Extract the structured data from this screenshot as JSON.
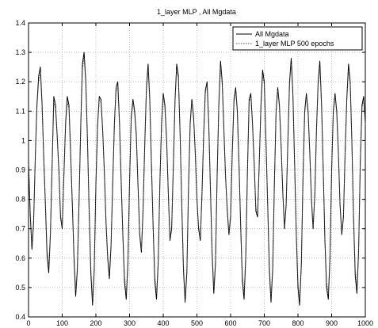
{
  "chart_data": {
    "type": "line",
    "title": "1_layer MLP , All Mgdata",
    "xlabel": "",
    "ylabel": "",
    "xlim": [
      0,
      1000
    ],
    "ylim": [
      0.4,
      1.4
    ],
    "xticks": [
      0,
      100,
      200,
      300,
      400,
      500,
      600,
      700,
      800,
      900,
      1000
    ],
    "yticks": [
      0.4,
      0.5,
      0.6,
      0.7,
      0.8,
      0.9,
      1,
      1.1,
      1.2,
      1.3,
      1.4
    ],
    "xtick_labels": [
      "0",
      "100",
      "200",
      "300",
      "400",
      "500",
      "600",
      "700",
      "800",
      "900",
      "1000"
    ],
    "ytick_labels": [
      "0.4",
      "0.5",
      "0.6",
      "0.7",
      "0.8",
      "0.9",
      "1",
      "1.1",
      "1.2",
      "1.3",
      "1.4"
    ],
    "grid": true,
    "legend_position": "top-right",
    "colors": {
      "series1": "#000000",
      "series2": "#555555",
      "grid": "#9a9a9a"
    },
    "series": [
      {
        "name": "All Mgdata",
        "style": "solid",
        "x": [
          0,
          5,
          10,
          15,
          20,
          25,
          30,
          35,
          40,
          45,
          50,
          55,
          60,
          65,
          70,
          75,
          80,
          85,
          90,
          95,
          100,
          105,
          110,
          115,
          120,
          125,
          130,
          135,
          140,
          145,
          150,
          155,
          160,
          165,
          170,
          175,
          180,
          185,
          190,
          195,
          200,
          205,
          210,
          215,
          220,
          225,
          230,
          235,
          240,
          245,
          250,
          255,
          260,
          265,
          270,
          275,
          280,
          285,
          290,
          295,
          300,
          305,
          310,
          315,
          320,
          325,
          330,
          335,
          340,
          345,
          350,
          355,
          360,
          365,
          370,
          375,
          380,
          385,
          390,
          395,
          400,
          405,
          410,
          415,
          420,
          425,
          430,
          435,
          440,
          445,
          450,
          455,
          460,
          465,
          470,
          475,
          480,
          485,
          490,
          495,
          500,
          505,
          510,
          515,
          520,
          525,
          530,
          535,
          540,
          545,
          550,
          555,
          560,
          565,
          570,
          575,
          580,
          585,
          590,
          595,
          600,
          605,
          610,
          615,
          620,
          625,
          630,
          635,
          640,
          645,
          650,
          655,
          660,
          665,
          670,
          675,
          680,
          685,
          690,
          695,
          700,
          705,
          710,
          715,
          720,
          725,
          730,
          735,
          740,
          745,
          750,
          755,
          760,
          765,
          770,
          775,
          780,
          785,
          790,
          795,
          800,
          805,
          810,
          815,
          820,
          825,
          830,
          835,
          840,
          845,
          850,
          855,
          860,
          865,
          870,
          875,
          880,
          885,
          890,
          895,
          900,
          905,
          910,
          915,
          920,
          925,
          930,
          935,
          940,
          945,
          950,
          955,
          960,
          965,
          970,
          975,
          980,
          985,
          990,
          995,
          1000
        ],
        "y": [
          0.93,
          0.75,
          0.63,
          0.72,
          0.94,
          1.12,
          1.22,
          1.25,
          1.13,
          0.95,
          0.78,
          0.61,
          0.55,
          0.68,
          0.92,
          1.15,
          1.12,
          1.02,
          0.9,
          0.74,
          0.7,
          0.88,
          1.06,
          1.15,
          1.12,
          0.96,
          0.78,
          0.6,
          0.47,
          0.56,
          0.8,
          1.05,
          1.26,
          1.3,
          1.2,
          1.0,
          0.76,
          0.55,
          0.44,
          0.56,
          0.85,
          1.05,
          1.15,
          1.14,
          1.04,
          0.9,
          0.72,
          0.6,
          0.53,
          0.64,
          0.86,
          1.06,
          1.18,
          1.2,
          1.06,
          0.86,
          0.68,
          0.52,
          0.46,
          0.58,
          0.86,
          1.08,
          1.14,
          1.1,
          1.02,
          0.85,
          0.68,
          0.62,
          0.76,
          0.98,
          1.18,
          1.26,
          1.14,
          0.92,
          0.7,
          0.52,
          0.46,
          0.58,
          0.86,
          1.06,
          1.16,
          1.12,
          1.0,
          0.82,
          0.66,
          0.7,
          0.92,
          1.14,
          1.26,
          1.22,
          1.02,
          0.78,
          0.56,
          0.45,
          0.55,
          0.84,
          1.06,
          1.14,
          1.08,
          0.96,
          0.8,
          0.7,
          0.66,
          0.82,
          1.02,
          1.17,
          1.2,
          1.06,
          0.84,
          0.62,
          0.48,
          0.58,
          0.88,
          1.12,
          1.27,
          1.2,
          1.04,
          0.88,
          0.76,
          0.68,
          0.74,
          0.96,
          1.14,
          1.18,
          1.1,
          0.92,
          0.7,
          0.52,
          0.46,
          0.6,
          0.9,
          1.14,
          1.16,
          1.06,
          0.92,
          0.76,
          0.74,
          0.92,
          1.12,
          1.24,
          1.2,
          1.0,
          0.78,
          0.56,
          0.45,
          0.56,
          0.86,
          1.1,
          1.18,
          1.12,
          0.98,
          0.82,
          0.7,
          0.78,
          1.0,
          1.2,
          1.28,
          1.16,
          0.92,
          0.68,
          0.5,
          0.44,
          0.58,
          0.88,
          1.1,
          1.16,
          1.1,
          0.96,
          0.8,
          0.7,
          0.82,
          1.04,
          1.2,
          1.27,
          1.12,
          0.9,
          0.66,
          0.5,
          0.46,
          0.6,
          0.9,
          1.1,
          1.16,
          1.1,
          0.96,
          0.78,
          0.68,
          0.74,
          0.96,
          1.14,
          1.26,
          1.2,
          1.0,
          0.74,
          0.54,
          0.48,
          0.62,
          0.92,
          1.12,
          1.15,
          1.06
        ]
      },
      {
        "name": "1_layer MLP 500 epochs",
        "style": "dotted",
        "x": [
          0,
          5,
          10,
          15,
          20,
          25,
          30,
          35,
          40,
          45,
          50,
          55,
          60,
          65,
          70,
          75,
          80,
          85,
          90,
          95,
          100,
          105,
          110,
          115,
          120,
          125,
          130,
          135,
          140,
          145,
          150,
          155,
          160,
          165,
          170,
          175,
          180,
          185,
          190,
          195,
          200,
          205,
          210,
          215,
          220,
          225,
          230,
          235,
          240,
          245,
          250,
          255,
          260,
          265,
          270,
          275,
          280,
          285,
          290,
          295,
          300,
          305,
          310,
          315,
          320,
          325,
          330,
          335,
          340,
          345,
          350,
          355,
          360,
          365,
          370,
          375,
          380,
          385,
          390,
          395,
          400,
          405,
          410,
          415,
          420,
          425,
          430,
          435,
          440,
          445,
          450,
          455,
          460,
          465,
          470,
          475,
          480,
          485,
          490,
          495,
          500,
          505,
          510,
          515,
          520,
          525,
          530,
          535,
          540,
          545,
          550,
          555,
          560,
          565,
          570,
          575,
          580,
          585,
          590,
          595,
          600,
          605,
          610,
          615,
          620,
          625,
          630,
          635,
          640,
          645,
          650,
          655,
          660,
          665,
          670,
          675,
          680,
          685,
          690,
          695,
          700,
          705,
          710,
          715,
          720,
          725,
          730,
          735,
          740,
          745,
          750,
          755,
          760,
          765,
          770,
          775,
          780,
          785,
          790,
          795,
          800,
          805,
          810,
          815,
          820,
          825,
          830,
          835,
          840,
          845,
          850,
          855,
          860,
          865,
          870,
          875,
          880,
          885,
          890,
          895,
          900,
          905,
          910,
          915,
          920,
          925,
          930,
          935,
          940,
          945,
          950,
          955,
          960,
          965,
          970,
          975,
          980,
          985,
          990,
          995,
          1000
        ],
        "y": [
          0.92,
          0.76,
          0.65,
          0.73,
          0.93,
          1.11,
          1.2,
          1.23,
          1.12,
          0.96,
          0.79,
          0.63,
          0.57,
          0.69,
          0.91,
          1.13,
          1.11,
          1.01,
          0.89,
          0.75,
          0.71,
          0.87,
          1.05,
          1.13,
          1.11,
          0.95,
          0.79,
          0.62,
          0.49,
          0.57,
          0.79,
          1.04,
          1.24,
          1.28,
          1.19,
          0.99,
          0.77,
          0.57,
          0.46,
          0.57,
          0.84,
          1.04,
          1.14,
          1.13,
          1.03,
          0.89,
          0.73,
          0.61,
          0.55,
          0.65,
          0.85,
          1.05,
          1.17,
          1.18,
          1.05,
          0.87,
          0.69,
          0.54,
          0.48,
          0.59,
          0.85,
          1.07,
          1.13,
          1.09,
          1.01,
          0.86,
          0.69,
          0.63,
          0.77,
          0.97,
          1.17,
          1.24,
          1.13,
          0.93,
          0.71,
          0.54,
          0.48,
          0.59,
          0.85,
          1.05,
          1.15,
          1.11,
          0.99,
          0.83,
          0.67,
          0.71,
          0.91,
          1.13,
          1.24,
          1.21,
          1.01,
          0.79,
          0.58,
          0.47,
          0.56,
          0.83,
          1.05,
          1.13,
          1.07,
          0.95,
          0.81,
          0.71,
          0.67,
          0.81,
          1.01,
          1.16,
          1.19,
          1.05,
          0.85,
          0.63,
          0.5,
          0.59,
          0.87,
          1.11,
          1.25,
          1.19,
          1.03,
          0.87,
          0.77,
          0.69,
          0.75,
          0.95,
          1.13,
          1.17,
          1.09,
          0.91,
          0.71,
          0.54,
          0.48,
          0.61,
          0.89,
          1.13,
          1.15,
          1.05,
          0.91,
          0.77,
          0.75,
          0.91,
          1.11,
          1.22,
          1.19,
          0.99,
          0.79,
          0.58,
          0.47,
          0.57,
          0.85,
          1.09,
          1.17,
          1.11,
          0.97,
          0.83,
          0.71,
          0.79,
          0.99,
          1.19,
          1.26,
          1.15,
          0.91,
          0.69,
          0.52,
          0.46,
          0.59,
          0.87,
          1.09,
          1.15,
          1.09,
          0.95,
          0.81,
          0.71,
          0.81,
          1.03,
          1.19,
          1.25,
          1.11,
          0.89,
          0.67,
          0.52,
          0.48,
          0.61,
          0.89,
          1.09,
          1.15,
          1.09,
          0.95,
          0.79,
          0.69,
          0.75,
          0.95,
          1.13,
          1.24,
          1.19,
          0.99,
          0.75,
          0.56,
          0.5,
          0.63,
          0.91,
          1.11,
          1.14,
          1.05
        ]
      }
    ]
  }
}
